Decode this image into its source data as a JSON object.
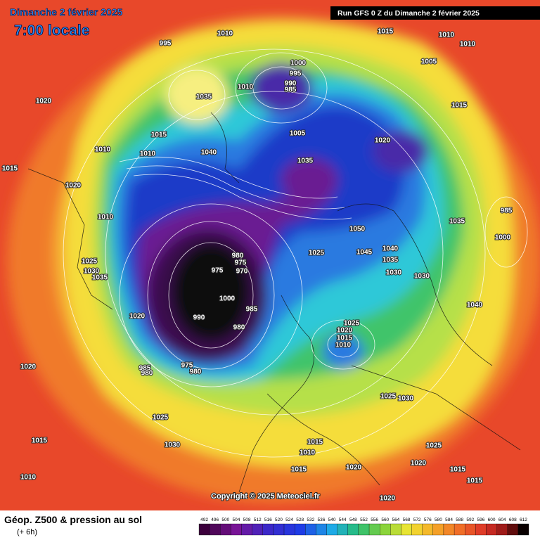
{
  "header": {
    "title": "Dimanche 2 février 2025",
    "time": "7:00 locale",
    "run": "Run GFS 0 Z du Dimanche 2 février 2025"
  },
  "legend": {
    "title": "Géop. Z500 & pression au sol",
    "lead": "(+ 6h)",
    "levels": [
      492,
      496,
      500,
      504,
      508,
      512,
      516,
      520,
      524,
      528,
      532,
      536,
      540,
      544,
      548,
      552,
      556,
      560,
      564,
      568,
      572,
      576,
      580,
      584,
      588,
      592,
      596,
      600,
      604,
      608,
      612
    ]
  },
  "copyright": "Copyright © 2025 Meteociel.fr",
  "isobars": [
    "1010",
    "1015",
    "1010",
    "1010",
    "1005",
    "995",
    "1000",
    "995",
    "990",
    "985",
    "1035",
    "1010",
    "1020",
    "1015",
    "1005",
    "1015",
    "1020",
    "1010",
    "1010",
    "1040",
    "1035",
    "1015",
    "1020",
    "1010",
    "1050",
    "1035",
    "985",
    "1000",
    "1025",
    "1045",
    "1040",
    "1035",
    "1030",
    "1030",
    "980",
    "975",
    "970",
    "975",
    "1025",
    "1030",
    "1035",
    "1000",
    "985",
    "1020",
    "990",
    "980",
    "1025",
    "1020",
    "1015",
    "1010",
    "1040",
    "1020",
    "985",
    "980",
    "975",
    "980",
    "1025",
    "1030",
    "1025",
    "1015",
    "1030",
    "1015",
    "1025",
    "1010",
    "1020",
    "1015",
    "1010",
    "1015",
    "1020",
    "1015",
    "1020"
  ]
}
